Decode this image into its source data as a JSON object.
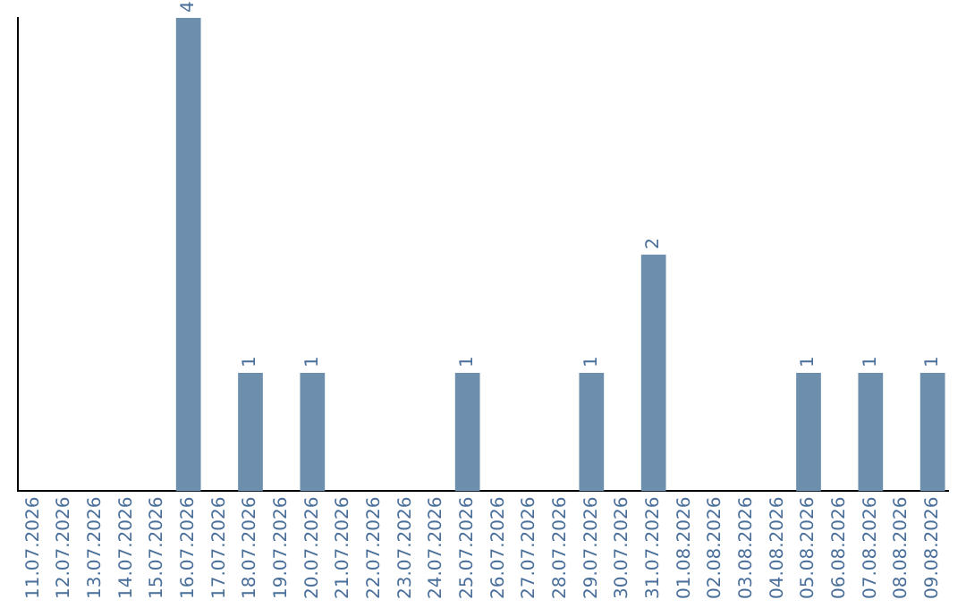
{
  "chart_data": {
    "type": "bar",
    "categories": [
      "11.07.2026",
      "12.07.2026",
      "13.07.2026",
      "14.07.2026",
      "15.07.2026",
      "16.07.2026",
      "17.07.2026",
      "18.07.2026",
      "19.07.2026",
      "20.07.2026",
      "21.07.2026",
      "22.07.2026",
      "23.07.2026",
      "24.07.2026",
      "25.07.2026",
      "26.07.2026",
      "27.07.2026",
      "28.07.2026",
      "29.07.2026",
      "30.07.2026",
      "31.07.2026",
      "01.08.2026",
      "02.08.2026",
      "03.08.2026",
      "04.08.2026",
      "05.08.2026",
      "06.08.2026",
      "07.08.2026",
      "08.08.2026",
      "09.08.2026"
    ],
    "values": [
      0,
      0,
      0,
      0,
      0,
      4,
      0,
      1,
      0,
      1,
      0,
      0,
      0,
      0,
      1,
      0,
      0,
      0,
      1,
      0,
      2,
      0,
      0,
      0,
      0,
      1,
      0,
      1,
      0,
      1
    ],
    "color": "#6d8fad",
    "value_labels": [
      null,
      null,
      null,
      null,
      null,
      "4",
      null,
      "1",
      null,
      "1",
      null,
      null,
      null,
      null,
      "1",
      null,
      null,
      null,
      "1",
      null,
      "2",
      null,
      null,
      null,
      null,
      "1",
      null,
      "1",
      null,
      "1"
    ],
    "tick_labels": "x",
    "grid": false,
    "legend": false
  }
}
